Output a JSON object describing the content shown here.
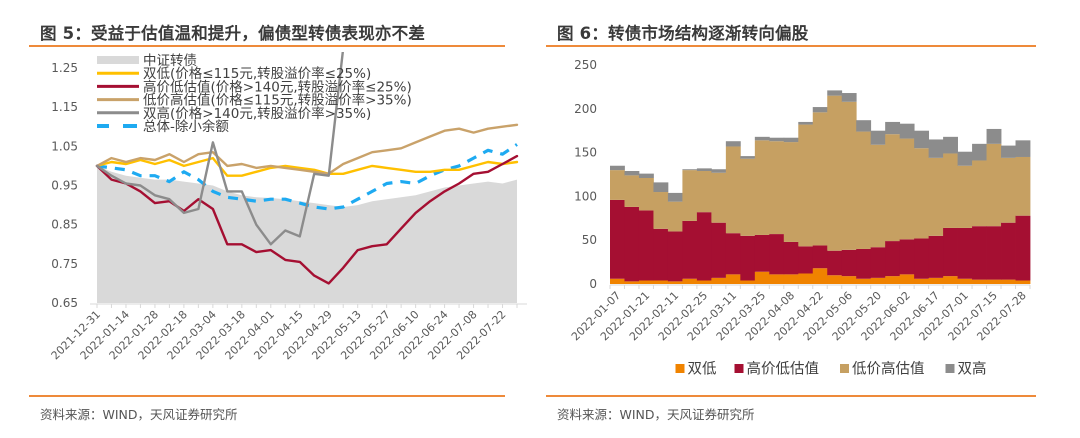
{
  "figures": {
    "left": {
      "title": "图 5：受益于估值温和提升，偏债型转债表现亦不差",
      "source": "资料来源：WIND，天风证券研究所"
    },
    "right": {
      "title": "图 6：转债市场结构逐渐转向偏股",
      "source": "资料来源：WIND，天风证券研究所"
    }
  },
  "colors": {
    "index_area": "#d9d9d9",
    "double_low": "#ffc000",
    "high_price_low_val": "#a50f32",
    "low_price_high_val": "#c9a26a",
    "double_high": "#8c8c8c",
    "overall": "#1eaaf1",
    "bar_double_low": "#f08300",
    "bar_high_price_low_val": "#a50f32",
    "bar_low_price_high_val": "#c6a062",
    "bar_double_high": "#8c8c8c",
    "rule": "#ee8a3a"
  },
  "chart_data": [
    {
      "type": "line",
      "title": "图 5：受益于估值温和提升，偏债型转债表现亦不差",
      "xlabel": "",
      "ylabel": "",
      "ylim": [
        0.65,
        1.25
      ],
      "yticks": [
        "1.25",
        "1.15",
        "1.05",
        "0.95",
        "0.85",
        "0.75",
        "0.65"
      ],
      "ytick_values": [
        1.25,
        1.15,
        1.05,
        0.95,
        0.85,
        0.75,
        0.65
      ],
      "xtick_labels": [
        "2021-12-31",
        "2022-01-14",
        "2022-01-28",
        "2022-02-18",
        "2022-03-04",
        "2022-03-18",
        "2022-04-01",
        "2022-04-15",
        "2022-04-29",
        "2022-05-13",
        "2022-05-27",
        "2022-06-10",
        "2022-06-24",
        "2022-07-08",
        "2022-07-22"
      ],
      "x_count": 30,
      "legend_position": "top-left",
      "grid": false,
      "series": [
        {
          "name": "中证转债",
          "style": "area",
          "color_key": "index_area",
          "values": [
            1.0,
            0.985,
            0.975,
            0.97,
            0.965,
            0.965,
            0.96,
            0.955,
            0.95,
            0.935,
            0.925,
            0.92,
            0.918,
            0.915,
            0.91,
            0.905,
            0.9,
            0.895,
            0.9,
            0.91,
            0.915,
            0.92,
            0.925,
            0.935,
            0.945,
            0.95,
            0.955,
            0.96,
            0.955,
            0.965
          ]
        },
        {
          "name": "双低(价格≤115元,转股溢价率≤25%)",
          "style": "solid",
          "color_key": "double_low",
          "values": [
            1.0,
            1.01,
            1.005,
            1.015,
            1.005,
            1.015,
            1.0,
            1.01,
            1.02,
            0.975,
            0.975,
            0.985,
            0.995,
            1.0,
            0.995,
            0.99,
            0.98,
            0.98,
            0.99,
            1.0,
            0.995,
            0.99,
            0.985,
            0.985,
            0.99,
            0.99,
            1.0,
            1.01,
            1.005,
            1.01
          ]
        },
        {
          "name": "高价低估值(价格>140元,转股溢价率≤25%)",
          "style": "solid",
          "color_key": "high_price_low_val",
          "values": [
            1.0,
            0.965,
            0.955,
            0.935,
            0.905,
            0.91,
            0.885,
            0.915,
            0.89,
            0.8,
            0.8,
            0.78,
            0.785,
            0.76,
            0.755,
            0.72,
            0.7,
            0.74,
            0.785,
            0.795,
            0.8,
            0.84,
            0.88,
            0.91,
            0.935,
            0.955,
            0.98,
            0.985,
            1.005,
            1.025
          ]
        },
        {
          "name": "低价高估值(价格≤115元,转股溢价率>35%)",
          "style": "solid",
          "color_key": "low_price_high_val",
          "values": [
            1.0,
            1.02,
            1.01,
            1.02,
            1.015,
            1.03,
            1.01,
            1.03,
            1.035,
            1.0,
            1.005,
            0.995,
            1.0,
            0.995,
            0.99,
            0.985,
            0.98,
            1.005,
            1.02,
            1.035,
            1.04,
            1.045,
            1.06,
            1.075,
            1.09,
            1.095,
            1.085,
            1.095,
            1.1,
            1.105
          ]
        },
        {
          "name": "双高(价格>140元,转股溢价率>35%)",
          "style": "solid",
          "color_key": "double_high",
          "values": [
            1.0,
            0.975,
            0.955,
            0.95,
            0.925,
            0.915,
            0.88,
            0.89,
            1.06,
            0.935,
            0.935,
            0.85,
            0.8,
            0.835,
            0.82,
            0.98,
            0.975,
            1.3,
            null,
            null,
            null,
            null,
            null,
            null,
            null,
            null,
            null,
            null,
            null,
            null
          ]
        },
        {
          "name": "总体-除小余额",
          "style": "dashed",
          "color_key": "overall",
          "values": [
            1.0,
            0.995,
            0.99,
            0.975,
            0.975,
            0.96,
            0.985,
            0.965,
            0.935,
            0.92,
            0.915,
            0.91,
            0.915,
            0.915,
            0.905,
            0.895,
            0.89,
            0.895,
            0.915,
            0.935,
            0.955,
            0.96,
            0.955,
            0.975,
            0.99,
            1.0,
            1.02,
            1.04,
            1.03,
            1.055
          ]
        }
      ]
    },
    {
      "type": "bar",
      "stacked": true,
      "title": "图 6：转债市场结构逐渐转向偏股",
      "xlabel": "",
      "ylabel": "",
      "ylim": [
        0,
        250
      ],
      "yticks": [
        "250",
        "200",
        "150",
        "100",
        "50",
        "0"
      ],
      "ytick_values": [
        250,
        200,
        150,
        100,
        50,
        0
      ],
      "xtick_labels": [
        "2022-01-07",
        "2022-01-21",
        "2022-02-11",
        "2022-02-25",
        "2022-03-11",
        "2022-03-25",
        "2022-04-08",
        "2022-04-22",
        "2022-05-06",
        "2022-05-20",
        "2022-06-02",
        "2022-06-17",
        "2022-07-01",
        "2022-07-15",
        "2022-07-28"
      ],
      "bar_count": 29,
      "legend_position": "bottom",
      "grid": false,
      "series": [
        {
          "name": "双低",
          "color_key": "bar_double_low",
          "values": [
            6,
            3,
            4,
            4,
            3,
            6,
            4,
            7,
            11,
            4,
            14,
            11,
            11,
            12,
            18,
            10,
            9,
            6,
            7,
            9,
            11,
            6,
            7,
            9,
            6,
            5,
            5,
            5,
            4
          ]
        },
        {
          "name": "高价低估值",
          "color_key": "bar_high_price_low_val",
          "values": [
            90,
            85,
            80,
            59,
            57,
            66,
            78,
            63,
            47,
            51,
            42,
            46,
            37,
            31,
            26,
            28,
            30,
            34,
            35,
            40,
            40,
            46,
            48,
            55,
            58,
            61,
            61,
            65,
            74
          ]
        },
        {
          "name": "低价高估值",
          "color_key": "bar_low_price_high_val",
          "values": [
            34,
            36,
            37,
            42,
            34,
            58,
            47,
            57,
            99,
            88,
            108,
            106,
            114,
            139,
            152,
            177,
            169,
            134,
            117,
            122,
            115,
            103,
            89,
            85,
            71,
            75,
            94,
            74,
            67
          ]
        },
        {
          "name": "双高",
          "color_key": "bar_double_high",
          "values": [
            5,
            5,
            5,
            11,
            10,
            1,
            3,
            4,
            6,
            3,
            4,
            4,
            5,
            3,
            6,
            6,
            10,
            13,
            16,
            14,
            17,
            20,
            21,
            19,
            16,
            19,
            17,
            14,
            19
          ]
        }
      ]
    }
  ]
}
